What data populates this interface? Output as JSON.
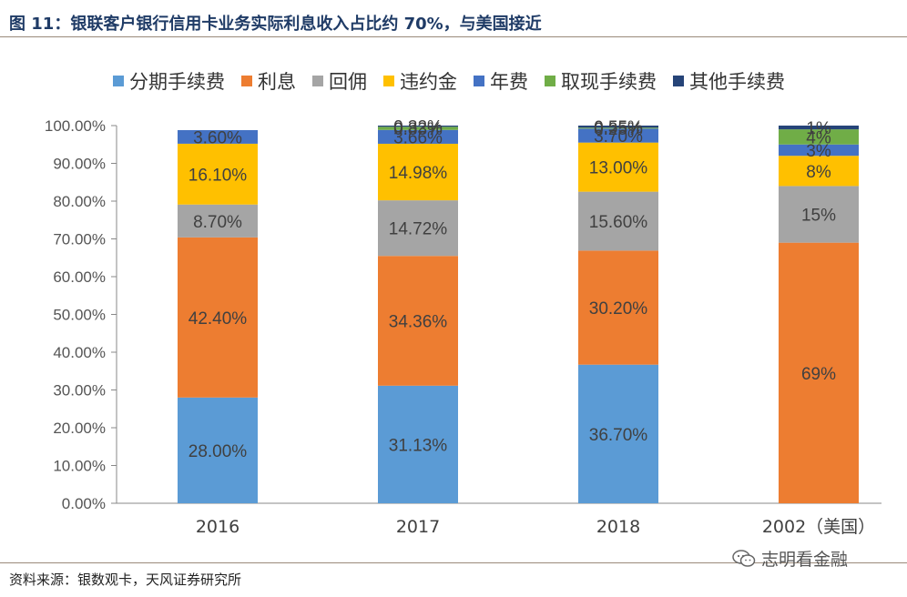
{
  "title": "图 11：银联客户银行信用卡业务实际利息收入占比约 70%，与美国接近",
  "source": "资料来源：银数观卡，天风证券研究所",
  "watermark": "志明看金融",
  "chart_data": {
    "type": "bar",
    "stacked": true,
    "categories": [
      "2016",
      "2017",
      "2018",
      "2002（美国）"
    ],
    "series": [
      {
        "name": "分期手续费",
        "color": "#5b9bd5",
        "values": [
          28.0,
          31.13,
          36.7,
          0
        ],
        "labels": [
          "28.00%",
          "31.13%",
          "36.70%",
          ""
        ]
      },
      {
        "name": "利息",
        "color": "#ed7d31",
        "values": [
          42.4,
          34.36,
          30.2,
          69
        ],
        "labels": [
          "42.40%",
          "34.36%",
          "30.20%",
          "69%"
        ]
      },
      {
        "name": "回佣",
        "color": "#a5a5a5",
        "values": [
          8.7,
          14.72,
          15.6,
          15
        ],
        "labels": [
          "8.70%",
          "14.72%",
          "15.60%",
          "15%"
        ]
      },
      {
        "name": "违约金",
        "color": "#ffc000",
        "values": [
          16.1,
          14.98,
          13.0,
          8
        ],
        "labels": [
          "16.10%",
          "14.98%",
          "13.00%",
          "8%"
        ]
      },
      {
        "name": "年费",
        "color": "#4472c4",
        "values": [
          3.6,
          3.66,
          3.7,
          3
        ],
        "labels": [
          "3.60%",
          "3.66%",
          "3.70%",
          "3%"
        ]
      },
      {
        "name": "取现手续费",
        "color": "#70ad47",
        "values": [
          0,
          0.83,
          0.25,
          4
        ],
        "labels": [
          "",
          "0.83%",
          "0.25%",
          "4%"
        ]
      },
      {
        "name": "其他手续费",
        "color": "#264478",
        "values": [
          0,
          0.32,
          0.55,
          1
        ],
        "labels": [
          "",
          "0.32%",
          "0.55%",
          "1%"
        ]
      }
    ],
    "yticks": [
      "0.00%",
      "10.00%",
      "20.00%",
      "30.00%",
      "40.00%",
      "50.00%",
      "60.00%",
      "70.00%",
      "80.00%",
      "90.00%",
      "100.00%"
    ],
    "ylim": [
      0,
      100
    ],
    "grid": false,
    "legend_position": "top"
  }
}
